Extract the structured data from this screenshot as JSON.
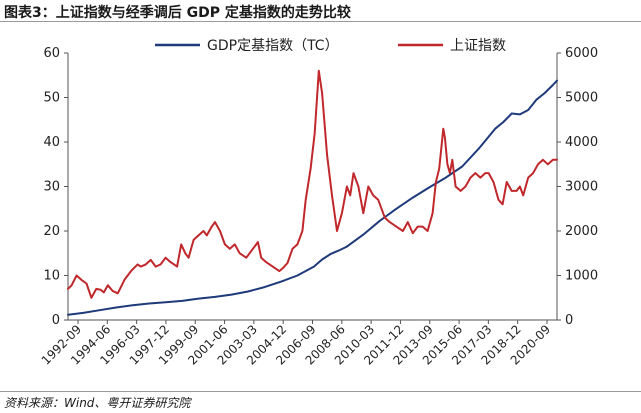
{
  "figure": {
    "title": "图表3：上证指数与经季调后 GDP 定基指数的走势比较",
    "source": "资料来源：Wind、粤开证券研究院"
  },
  "colors": {
    "gdp": "#1f3a7a",
    "sse": "#c0282c",
    "axis": "#555555"
  },
  "chart_data": {
    "type": "line",
    "x_tick_labels": [
      "1992-09",
      "1994-06",
      "1996-03",
      "1997-12",
      "1999-09",
      "2001-06",
      "2003-03",
      "2004-12",
      "2006-09",
      "2008-06",
      "2010-03",
      "2011-12",
      "2013-09",
      "2015-06",
      "2017-03",
      "2018-12",
      "2020-09"
    ],
    "x_range": [
      1992.58,
      2022.25
    ],
    "y_left": {
      "range": [
        0,
        60
      ],
      "ticks": [
        0,
        10,
        20,
        30,
        40,
        50,
        60
      ]
    },
    "y_right": {
      "range": [
        0,
        6000
      ],
      "ticks": [
        0,
        1000,
        2000,
        3000,
        4000,
        5000,
        6000
      ]
    },
    "grid": false,
    "legend_position": "top-center",
    "series": [
      {
        "name": "GDP定基指数（TC）",
        "axis": "left",
        "color_key": "gdp",
        "x": [
          1992.58,
          1993.5,
          1994.5,
          1995.5,
          1996.5,
          1997.5,
          1998.5,
          1999.5,
          2000.5,
          2001.5,
          2002.5,
          2003.5,
          2004.5,
          2005.5,
          2006.5,
          2007.5,
          2008.0,
          2008.5,
          2009.0,
          2009.5,
          2010.5,
          2011.5,
          2012.5,
          2013.5,
          2014.5,
          2015.5,
          2016.5,
          2017.5,
          2018.5,
          2019.0,
          2019.5,
          2020.0,
          2020.5,
          2021.0,
          2021.5,
          2022.0,
          2022.25
        ],
        "y": [
          1.2,
          1.6,
          2.2,
          2.8,
          3.3,
          3.7,
          4.0,
          4.3,
          4.8,
          5.2,
          5.7,
          6.4,
          7.4,
          8.6,
          10.0,
          12.0,
          13.6,
          14.8,
          15.6,
          16.5,
          19.2,
          22.3,
          25.0,
          27.5,
          29.8,
          32.0,
          34.5,
          38.5,
          43.0,
          44.5,
          46.4,
          46.2,
          47.2,
          49.5,
          51.0,
          52.8,
          53.8
        ]
      },
      {
        "name": "上证指数",
        "axis": "right",
        "color_key": "sse",
        "x": [
          1992.58,
          1992.8,
          1993.1,
          1993.4,
          1993.7,
          1994.0,
          1994.3,
          1994.55,
          1994.75,
          1995.0,
          1995.3,
          1995.6,
          1996.0,
          1996.4,
          1996.8,
          1997.0,
          1997.3,
          1997.6,
          1997.9,
          1998.2,
          1998.5,
          1998.8,
          1999.2,
          1999.45,
          1999.7,
          1999.9,
          2000.2,
          2000.5,
          2000.8,
          2001.0,
          2001.3,
          2001.5,
          2001.8,
          2002.1,
          2002.4,
          2002.7,
          2003.0,
          2003.4,
          2003.8,
          2004.1,
          2004.3,
          2004.6,
          2005.0,
          2005.4,
          2005.6,
          2005.9,
          2006.2,
          2006.5,
          2006.8,
          2007.0,
          2007.3,
          2007.55,
          2007.8,
          2008.0,
          2008.3,
          2008.6,
          2008.9,
          2009.2,
          2009.5,
          2009.7,
          2009.9,
          2010.2,
          2010.5,
          2010.8,
          2011.1,
          2011.4,
          2011.8,
          2012.1,
          2012.5,
          2012.9,
          2013.2,
          2013.5,
          2013.8,
          2014.1,
          2014.4,
          2014.7,
          2014.9,
          2015.1,
          2015.35,
          2015.45,
          2015.6,
          2015.75,
          2015.9,
          2016.1,
          2016.4,
          2016.7,
          2017.0,
          2017.3,
          2017.6,
          2017.9,
          2018.1,
          2018.4,
          2018.7,
          2018.95,
          2019.2,
          2019.5,
          2019.8,
          2020.0,
          2020.2,
          2020.5,
          2020.8,
          2021.1,
          2021.4,
          2021.7,
          2022.0,
          2022.25
        ],
        "y": [
          700,
          780,
          1000,
          900,
          820,
          500,
          700,
          680,
          620,
          780,
          650,
          600,
          900,
          1100,
          1250,
          1200,
          1250,
          1350,
          1200,
          1250,
          1400,
          1300,
          1200,
          1700,
          1500,
          1400,
          1800,
          1900,
          2000,
          1900,
          2100,
          2200,
          2000,
          1700,
          1600,
          1700,
          1500,
          1400,
          1600,
          1750,
          1400,
          1300,
          1200,
          1100,
          1160,
          1280,
          1600,
          1700,
          2000,
          2700,
          3400,
          4200,
          5600,
          5100,
          3700,
          2800,
          2000,
          2400,
          3000,
          2800,
          3300,
          3000,
          2400,
          3000,
          2800,
          2700,
          2300,
          2200,
          2100,
          2000,
          2200,
          1950,
          2100,
          2100,
          2000,
          2400,
          3100,
          3400,
          4300,
          4100,
          3500,
          3300,
          3600,
          3000,
          2900,
          3000,
          3200,
          3300,
          3200,
          3300,
          3300,
          3100,
          2700,
          2600,
          3100,
          2900,
          2900,
          3000,
          2800,
          3200,
          3300,
          3500,
          3600,
          3500,
          3600,
          3600
        ]
      }
    ]
  }
}
